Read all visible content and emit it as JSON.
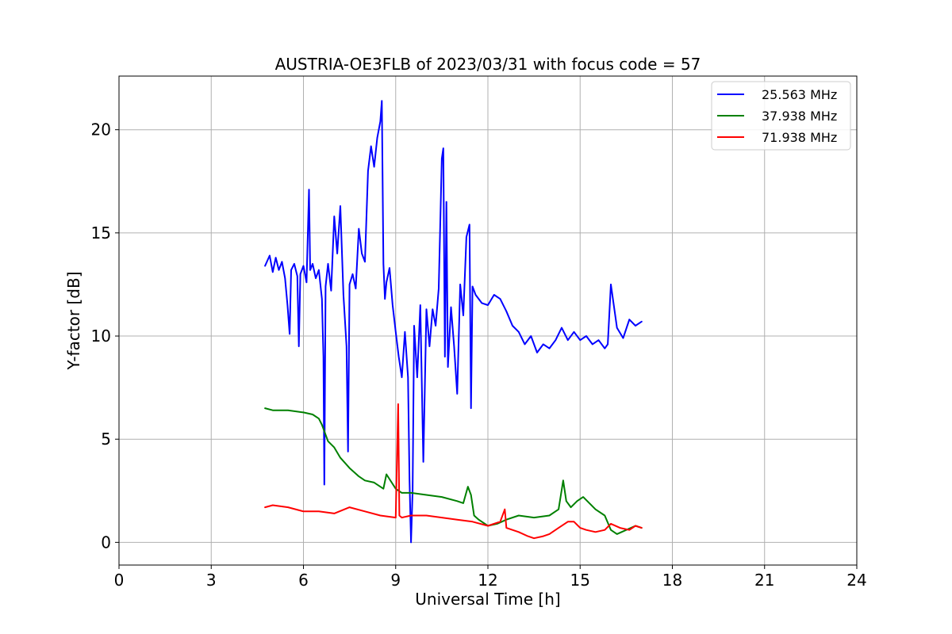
{
  "chart_data": {
    "type": "line",
    "title": "AUSTRIA-OE3FLB of 2023/03/31 with focus code = 57",
    "xlabel": "Universal Time [h]",
    "ylabel": "Y-factor [dB]",
    "xlim": [
      0,
      24
    ],
    "ylim": [
      -1.1,
      22.6
    ],
    "xticks": [
      0,
      3,
      6,
      9,
      12,
      15,
      18,
      21,
      24
    ],
    "yticks": [
      0,
      5,
      10,
      15,
      20
    ],
    "grid": true,
    "legend_position": "top-right",
    "series": [
      {
        "name": "25.563 MHz",
        "color": "#0000ff",
        "x": [
          4.75,
          4.9,
          5.0,
          5.1,
          5.2,
          5.3,
          5.4,
          5.48,
          5.55,
          5.6,
          5.7,
          5.8,
          5.85,
          5.9,
          6.0,
          6.1,
          6.18,
          6.22,
          6.3,
          6.4,
          6.5,
          6.6,
          6.65,
          6.68,
          6.72,
          6.8,
          6.9,
          7.0,
          7.1,
          7.2,
          7.3,
          7.4,
          7.45,
          7.5,
          7.6,
          7.7,
          7.8,
          7.9,
          8.0,
          8.1,
          8.2,
          8.3,
          8.4,
          8.5,
          8.55,
          8.6,
          8.65,
          8.7,
          8.8,
          8.9,
          9.0,
          9.1,
          9.2,
          9.3,
          9.4,
          9.45,
          9.5,
          9.55,
          9.6,
          9.7,
          9.8,
          9.9,
          10.0,
          10.1,
          10.2,
          10.3,
          10.4,
          10.5,
          10.55,
          10.6,
          10.65,
          10.7,
          10.8,
          10.9,
          11.0,
          11.1,
          11.2,
          11.3,
          11.4,
          11.45,
          11.5,
          11.6,
          11.8,
          12.0,
          12.2,
          12.4,
          12.6,
          12.8,
          13.0,
          13.2,
          13.4,
          13.6,
          13.8,
          14.0,
          14.2,
          14.4,
          14.6,
          14.8,
          15.0,
          15.2,
          15.4,
          15.6,
          15.8,
          15.9,
          16.0,
          16.2,
          16.4,
          16.6,
          16.8,
          17.0
        ],
        "y": [
          13.4,
          13.9,
          13.1,
          13.8,
          13.2,
          13.6,
          12.8,
          11.5,
          10.1,
          13.2,
          13.5,
          12.9,
          9.5,
          13.0,
          13.4,
          12.6,
          17.1,
          13.2,
          13.5,
          12.8,
          13.2,
          11.8,
          9.0,
          2.8,
          12.4,
          13.5,
          12.2,
          15.8,
          14.0,
          16.3,
          12.0,
          9.5,
          4.4,
          12.5,
          13.0,
          12.3,
          15.2,
          14.0,
          13.6,
          18.0,
          19.2,
          18.2,
          19.6,
          20.4,
          21.4,
          13.5,
          11.8,
          12.6,
          13.3,
          11.5,
          10.2,
          9.0,
          8.0,
          10.2,
          8.0,
          3.0,
          0.0,
          2.5,
          10.5,
          8.0,
          11.5,
          3.9,
          11.3,
          9.5,
          11.3,
          10.5,
          12.3,
          18.6,
          19.1,
          9.0,
          16.5,
          8.5,
          11.4,
          9.5,
          7.2,
          12.5,
          11.0,
          14.8,
          15.4,
          6.5,
          12.4,
          12.0,
          11.6,
          11.5,
          12.0,
          11.8,
          11.2,
          10.5,
          10.2,
          9.6,
          10.0,
          9.2,
          9.6,
          9.4,
          9.8,
          10.4,
          9.8,
          10.2,
          9.8,
          10.0,
          9.6,
          9.8,
          9.4,
          9.6,
          12.5,
          10.4,
          9.9,
          10.8,
          10.5,
          10.7
        ]
      },
      {
        "name": "37.938 MHz",
        "color": "#008000",
        "x": [
          4.75,
          5.0,
          5.5,
          6.0,
          6.3,
          6.5,
          6.6,
          6.8,
          7.0,
          7.2,
          7.5,
          7.8,
          8.0,
          8.3,
          8.6,
          8.7,
          9.0,
          9.2,
          9.5,
          10.0,
          10.5,
          11.0,
          11.2,
          11.35,
          11.45,
          11.55,
          11.7,
          12.0,
          12.3,
          12.6,
          13.0,
          13.5,
          14.0,
          14.3,
          14.45,
          14.55,
          14.7,
          14.9,
          15.1,
          15.3,
          15.5,
          15.8,
          16.0,
          16.2,
          16.5,
          16.8,
          17.0
        ],
        "y": [
          6.5,
          6.4,
          6.4,
          6.3,
          6.2,
          6.0,
          5.7,
          4.9,
          4.6,
          4.1,
          3.6,
          3.2,
          3.0,
          2.9,
          2.6,
          3.3,
          2.6,
          2.4,
          2.4,
          2.3,
          2.2,
          2.0,
          1.9,
          2.7,
          2.3,
          1.3,
          1.1,
          0.8,
          0.9,
          1.1,
          1.3,
          1.2,
          1.3,
          1.6,
          3.0,
          2.0,
          1.7,
          2.0,
          2.2,
          1.9,
          1.6,
          1.3,
          0.6,
          0.4,
          0.6,
          0.8,
          0.7
        ]
      },
      {
        "name": "71.938 MHz",
        "color": "#ff0000",
        "x": [
          4.75,
          5.0,
          5.5,
          6.0,
          6.5,
          7.0,
          7.5,
          8.0,
          8.5,
          9.0,
          9.08,
          9.12,
          9.2,
          9.5,
          10.0,
          10.5,
          11.0,
          11.5,
          12.0,
          12.4,
          12.55,
          12.6,
          12.8,
          13.0,
          13.3,
          13.5,
          13.8,
          14.0,
          14.3,
          14.6,
          14.8,
          15.0,
          15.2,
          15.5,
          15.8,
          16.0,
          16.3,
          16.6,
          16.8,
          17.0
        ],
        "y": [
          1.7,
          1.8,
          1.7,
          1.5,
          1.5,
          1.4,
          1.7,
          1.5,
          1.3,
          1.2,
          6.7,
          1.3,
          1.2,
          1.3,
          1.3,
          1.2,
          1.1,
          1.0,
          0.8,
          1.0,
          1.6,
          0.7,
          0.6,
          0.5,
          0.3,
          0.2,
          0.3,
          0.4,
          0.7,
          1.0,
          1.0,
          0.7,
          0.6,
          0.5,
          0.6,
          0.9,
          0.7,
          0.6,
          0.8,
          0.7
        ]
      }
    ]
  }
}
